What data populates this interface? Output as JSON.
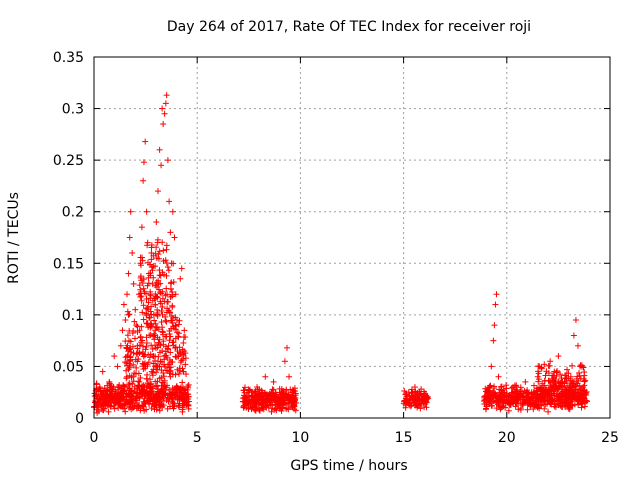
{
  "chart_data": {
    "type": "scatter",
    "title": "Day 264 of 2017, Rate Of TEC Index for receiver roji",
    "xlabel": "GPS time / hours",
    "ylabel": "ROTI / TECUs",
    "xlim": [
      0,
      25
    ],
    "ylim": [
      0,
      0.35
    ],
    "grid": true,
    "marker": "+",
    "color": "#ff0000",
    "xticks": [
      0,
      5,
      10,
      15,
      20,
      25
    ],
    "xtick_labels": [
      "0",
      "5",
      "10",
      "15",
      "20",
      "25"
    ],
    "yticks": [
      0,
      0.05,
      0.1,
      0.15,
      0.2,
      0.25,
      0.3,
      0.35
    ],
    "ytick_labels": [
      "0",
      "0.05",
      "0.1",
      "0.15",
      "0.2",
      "0.25",
      "0.3",
      "0.35"
    ],
    "series": [
      {
        "name": "ROTI",
        "points": [
          [
            0.05,
            0.015
          ],
          [
            0.12,
            0.022
          ],
          [
            0.2,
            0.012
          ],
          [
            0.28,
            0.03
          ],
          [
            0.35,
            0.018
          ],
          [
            0.42,
            0.045
          ],
          [
            0.5,
            0.014
          ],
          [
            0.58,
            0.026
          ],
          [
            0.66,
            0.02
          ],
          [
            0.74,
            0.035
          ],
          [
            0.82,
            0.011
          ],
          [
            0.9,
            0.028
          ],
          [
            0.98,
            0.06
          ],
          [
            1.06,
            0.02
          ],
          [
            1.14,
            0.05
          ],
          [
            1.22,
            0.032
          ],
          [
            1.3,
            0.07
          ],
          [
            1.38,
            0.085
          ],
          [
            1.45,
            0.11
          ],
          [
            1.52,
            0.095
          ],
          [
            1.6,
            0.12
          ],
          [
            1.67,
            0.14
          ],
          [
            1.73,
            0.175
          ],
          [
            1.78,
            0.2
          ],
          [
            1.85,
            0.16
          ],
          [
            1.92,
            0.13
          ],
          [
            2.0,
            0.105
          ],
          [
            2.05,
            0.09
          ],
          [
            2.1,
            0.07
          ],
          [
            2.18,
            0.12
          ],
          [
            2.25,
            0.15
          ],
          [
            2.32,
            0.185
          ],
          [
            2.38,
            0.23
          ],
          [
            2.42,
            0.248
          ],
          [
            2.48,
            0.268
          ],
          [
            2.55,
            0.2
          ],
          [
            2.6,
            0.17
          ],
          [
            2.66,
            0.14
          ],
          [
            2.72,
            0.12
          ],
          [
            2.78,
            0.16
          ],
          [
            2.84,
            0.13
          ],
          [
            2.9,
            0.1
          ],
          [
            2.96,
            0.08
          ],
          [
            3.02,
            0.19
          ],
          [
            3.1,
            0.22
          ],
          [
            3.18,
            0.26
          ],
          [
            3.25,
            0.245
          ],
          [
            3.3,
            0.3
          ],
          [
            3.35,
            0.285
          ],
          [
            3.42,
            0.295
          ],
          [
            3.48,
            0.305
          ],
          [
            3.52,
            0.313
          ],
          [
            3.58,
            0.25
          ],
          [
            3.64,
            0.21
          ],
          [
            3.7,
            0.18
          ],
          [
            3.76,
            0.15
          ],
          [
            3.82,
            0.2
          ],
          [
            3.9,
            0.175
          ],
          [
            3.96,
            0.12
          ],
          [
            4.02,
            0.095
          ],
          [
            4.1,
            0.06
          ],
          [
            4.18,
            0.135
          ],
          [
            4.25,
            0.145
          ],
          [
            4.32,
            0.045
          ],
          [
            4.4,
            0.02
          ],
          [
            4.48,
            0.015
          ],
          [
            0.15,
            0.005
          ],
          [
            0.4,
            0.008
          ],
          [
            0.7,
            0.006
          ],
          [
            1.0,
            0.009
          ],
          [
            1.3,
            0.012
          ],
          [
            1.6,
            0.03
          ],
          [
            1.9,
            0.04
          ],
          [
            2.2,
            0.035
          ],
          [
            2.5,
            0.05
          ],
          [
            2.8,
            0.045
          ],
          [
            3.1,
            0.055
          ],
          [
            3.4,
            0.06
          ],
          [
            3.7,
            0.04
          ],
          [
            4.0,
            0.03
          ],
          [
            4.3,
            0.01
          ],
          [
            7.3,
            0.012
          ],
          [
            7.5,
            0.025
          ],
          [
            7.7,
            0.018
          ],
          [
            7.9,
            0.03
          ],
          [
            8.1,
            0.015
          ],
          [
            8.3,
            0.04
          ],
          [
            8.5,
            0.022
          ],
          [
            8.7,
            0.035
          ],
          [
            8.9,
            0.014
          ],
          [
            9.1,
            0.028
          ],
          [
            9.25,
            0.055
          ],
          [
            9.35,
            0.068
          ],
          [
            9.45,
            0.04
          ],
          [
            9.55,
            0.02
          ],
          [
            9.7,
            0.012
          ],
          [
            8.0,
            0.008
          ],
          [
            8.6,
            0.006
          ],
          [
            9.0,
            0.009
          ],
          [
            15.1,
            0.01
          ],
          [
            15.25,
            0.025
          ],
          [
            15.4,
            0.015
          ],
          [
            15.55,
            0.03
          ],
          [
            15.7,
            0.012
          ],
          [
            15.85,
            0.028
          ],
          [
            16.0,
            0.018
          ],
          [
            16.1,
            0.022
          ],
          [
            19.0,
            0.015
          ],
          [
            19.15,
            0.03
          ],
          [
            19.25,
            0.05
          ],
          [
            19.35,
            0.075
          ],
          [
            19.4,
            0.09
          ],
          [
            19.45,
            0.11
          ],
          [
            19.5,
            0.12
          ],
          [
            19.6,
            0.04
          ],
          [
            19.8,
            0.025
          ],
          [
            20.0,
            0.018
          ],
          [
            20.3,
            0.03
          ],
          [
            20.6,
            0.022
          ],
          [
            20.9,
            0.035
          ],
          [
            21.2,
            0.02
          ],
          [
            21.5,
            0.04
          ],
          [
            21.8,
            0.03
          ],
          [
            22.1,
            0.055
          ],
          [
            22.3,
            0.045
          ],
          [
            22.5,
            0.06
          ],
          [
            22.7,
            0.035
          ],
          [
            22.9,
            0.025
          ],
          [
            23.1,
            0.04
          ],
          [
            23.25,
            0.08
          ],
          [
            23.35,
            0.095
          ],
          [
            23.45,
            0.07
          ],
          [
            23.55,
            0.05
          ],
          [
            23.7,
            0.03
          ],
          [
            23.8,
            0.015
          ],
          [
            20.1,
            0.007
          ],
          [
            21.0,
            0.008
          ],
          [
            22.0,
            0.006
          ],
          [
            23.0,
            0.009
          ]
        ],
        "clusters": [
          {
            "x_range": [
              0.0,
              4.6
            ],
            "y_center": 0.02,
            "y_spread": 0.015,
            "count": 520
          },
          {
            "x_range": [
              1.5,
              4.5
            ],
            "y_center": 0.06,
            "y_spread": 0.05,
            "count": 260
          },
          {
            "x_range": [
              2.2,
              3.9
            ],
            "y_center": 0.12,
            "y_spread": 0.06,
            "count": 150
          },
          {
            "x_range": [
              7.2,
              9.8
            ],
            "y_center": 0.018,
            "y_spread": 0.012,
            "count": 300
          },
          {
            "x_range": [
              15.0,
              16.2
            ],
            "y_center": 0.018,
            "y_spread": 0.01,
            "count": 110
          },
          {
            "x_range": [
              18.9,
              23.9
            ],
            "y_center": 0.02,
            "y_spread": 0.013,
            "count": 520
          },
          {
            "x_range": [
              21.5,
              23.8
            ],
            "y_center": 0.035,
            "y_spread": 0.02,
            "count": 120
          }
        ]
      }
    ]
  }
}
